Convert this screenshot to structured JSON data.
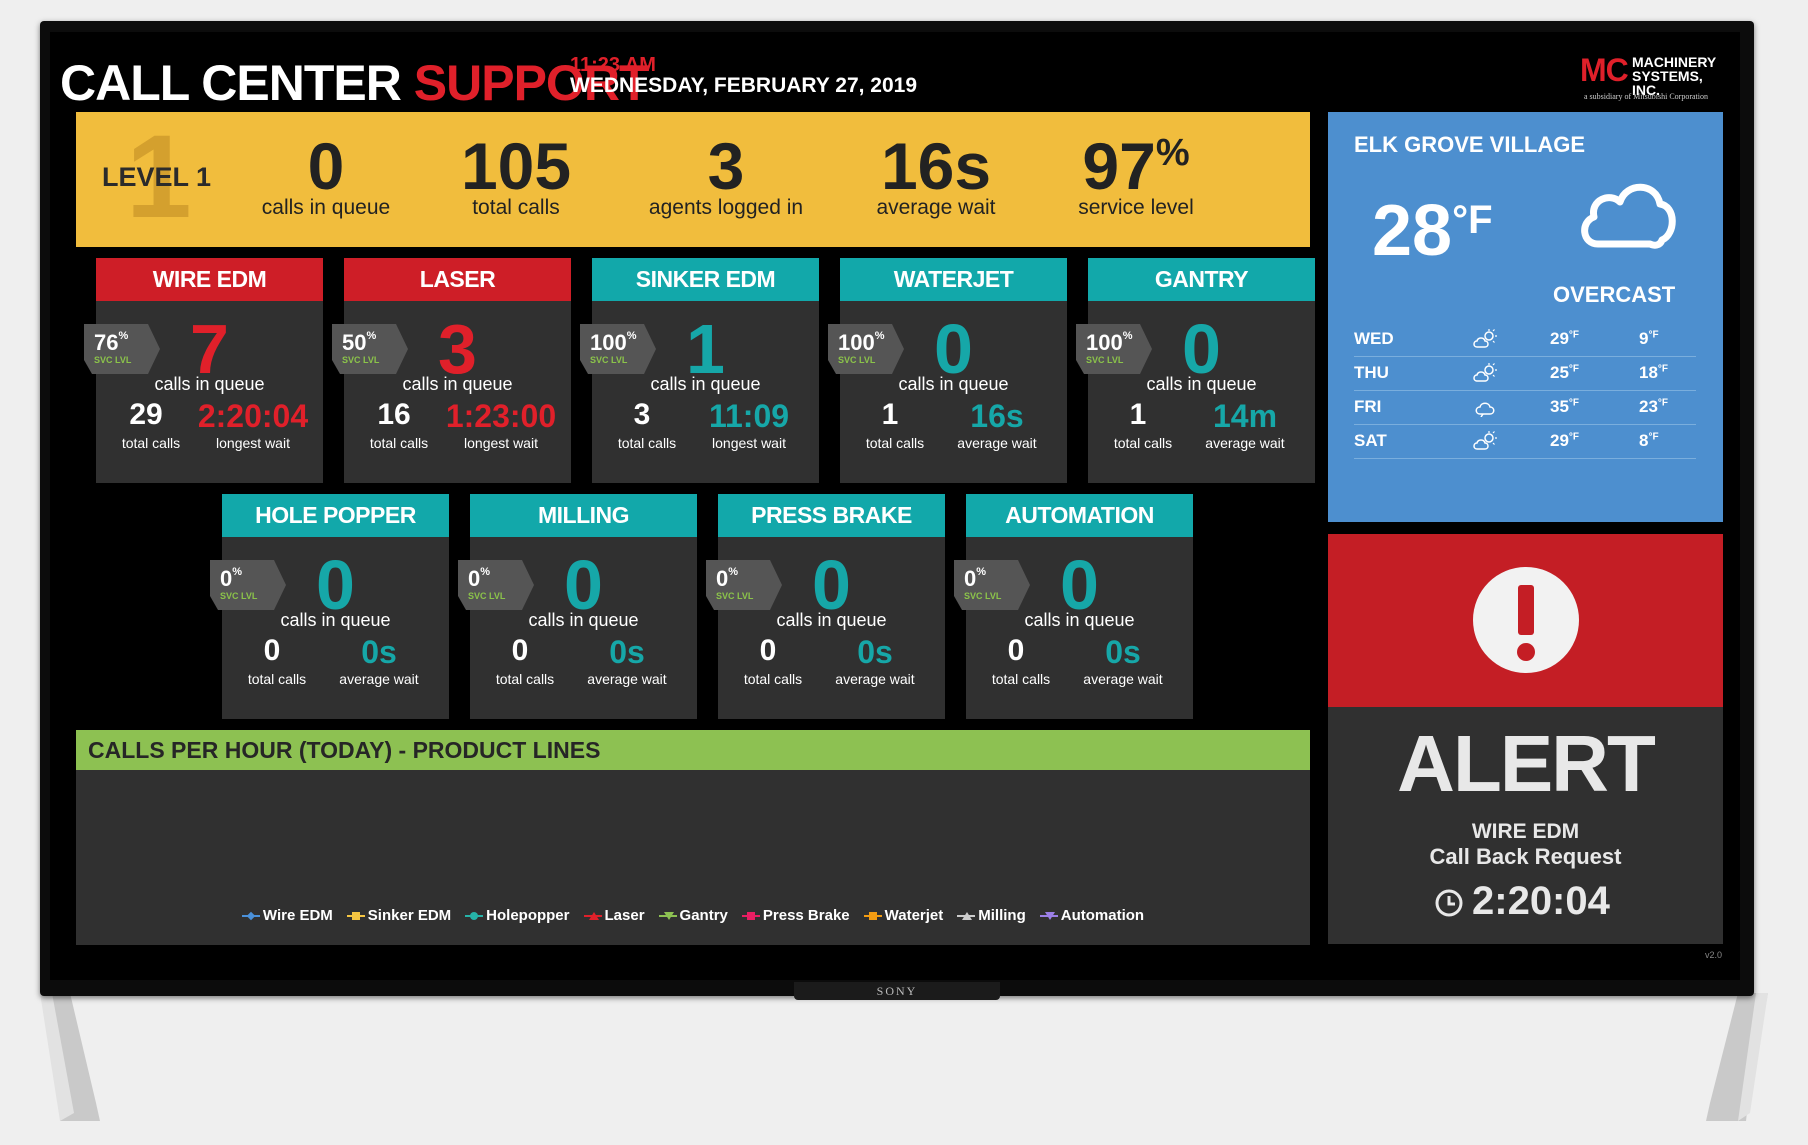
{
  "header": {
    "title_left": "CALL CENTER",
    "title_right": "SUPPORT",
    "time": "11:23 AM",
    "date": "WEDNESDAY, FEBRUARY 27, 2019",
    "logo": {
      "mc": "MC",
      "line1": "MACHINERY",
      "line2": "SYSTEMS, INC.",
      "subsidiary": "a subsidiary of Mitsubishi Corporation"
    }
  },
  "level": {
    "big_digit": "1",
    "label": "LEVEL 1",
    "stats": [
      {
        "value": "0",
        "label": "calls in queue"
      },
      {
        "value": "105",
        "label": "total calls"
      },
      {
        "value": "3",
        "label": "agents logged in"
      },
      {
        "value": "16s",
        "label": "average wait"
      },
      {
        "value": "97",
        "suffix": "%",
        "label": "service level"
      }
    ]
  },
  "cards": [
    {
      "name": "WIRE EDM",
      "color": "red",
      "svc_pct": "76",
      "svc_label": "SVC LVL",
      "queue": "7",
      "queue_label": "calls in queue",
      "total": "29",
      "total_label": "total calls",
      "wait": "2:20:04",
      "wait_label": "longest wait"
    },
    {
      "name": "LASER",
      "color": "red",
      "svc_pct": "50",
      "svc_label": "SVC LVL",
      "queue": "3",
      "queue_label": "calls in queue",
      "total": "16",
      "total_label": "total calls",
      "wait": "1:23:00",
      "wait_label": "longest wait"
    },
    {
      "name": "SINKER EDM",
      "color": "teal",
      "svc_pct": "100",
      "svc_label": "SVC LVL",
      "queue": "1",
      "queue_label": "calls in queue",
      "total": "3",
      "total_label": "total calls",
      "wait": "11:09",
      "wait_label": "longest wait"
    },
    {
      "name": "WATERJET",
      "color": "teal",
      "svc_pct": "100",
      "svc_label": "SVC LVL",
      "queue": "0",
      "queue_label": "calls in queue",
      "total": "1",
      "total_label": "total calls",
      "wait": "16s",
      "wait_label": "average wait"
    },
    {
      "name": "GANTRY",
      "color": "teal",
      "svc_pct": "100",
      "svc_label": "SVC LVL",
      "queue": "0",
      "queue_label": "calls in queue",
      "total": "1",
      "total_label": "total calls",
      "wait": "14m",
      "wait_label": "average wait"
    },
    {
      "name": "HOLE POPPER",
      "color": "teal",
      "svc_pct": "0",
      "svc_label": "SVC LVL",
      "queue": "0",
      "queue_label": "calls in queue",
      "total": "0",
      "total_label": "total calls",
      "wait": "0s",
      "wait_label": "average wait"
    },
    {
      "name": "MILLING",
      "color": "teal",
      "svc_pct": "0",
      "svc_label": "SVC LVL",
      "queue": "0",
      "queue_label": "calls in queue",
      "total": "0",
      "total_label": "total calls",
      "wait": "0s",
      "wait_label": "average wait"
    },
    {
      "name": "PRESS BRAKE",
      "color": "teal",
      "svc_pct": "0",
      "svc_label": "SVC LVL",
      "queue": "0",
      "queue_label": "calls in queue",
      "total": "0",
      "total_label": "total calls",
      "wait": "0s",
      "wait_label": "average wait"
    },
    {
      "name": "AUTOMATION",
      "color": "teal",
      "svc_pct": "0",
      "svc_label": "SVC LVL",
      "queue": "0",
      "queue_label": "calls in queue",
      "total": "0",
      "total_label": "total calls",
      "wait": "0s",
      "wait_label": "average wait"
    }
  ],
  "percent_symbol": "%",
  "colors": {
    "red": "#ce1e27",
    "teal": "#12a8aa",
    "yellow": "#f1bd3d",
    "green": "#8dc152",
    "weather_blue": "#4d8fcf"
  },
  "calls_per_hour": {
    "title": "CALLS PER HOUR (TODAY) - PRODUCT LINES",
    "legend": [
      {
        "label": "Wire EDM",
        "color": "#4a90d9",
        "marker": "diamond"
      },
      {
        "label": "Sinker EDM",
        "color": "#f5c542",
        "marker": "square"
      },
      {
        "label": "Holepopper",
        "color": "#26b3a8",
        "marker": "circle"
      },
      {
        "label": "Laser",
        "color": "#e0202a",
        "marker": "triangle"
      },
      {
        "label": "Gantry",
        "color": "#8dc152",
        "marker": "triangle-down"
      },
      {
        "label": "Press Brake",
        "color": "#e91e63",
        "marker": "dots"
      },
      {
        "label": "Waterjet",
        "color": "#f39c12",
        "marker": "square"
      },
      {
        "label": "Milling",
        "color": "#cccccc",
        "marker": "triangle"
      },
      {
        "label": "Automation",
        "color": "#9b7fe6",
        "marker": "triangle-down"
      }
    ]
  },
  "weather": {
    "location": "ELK GROVE VILLAGE",
    "temp": "28",
    "unit": "°F",
    "condition": "OVERCAST",
    "icon": "cloud-icon",
    "forecast": [
      {
        "day": "WED",
        "icon": "partly-sunny-icon",
        "hi": "29",
        "lo": "9"
      },
      {
        "day": "THU",
        "icon": "partly-sunny-icon",
        "hi": "25",
        "lo": "18"
      },
      {
        "day": "FRI",
        "icon": "cloud-outline-icon",
        "hi": "35",
        "lo": "23"
      },
      {
        "day": "SAT",
        "icon": "partly-sunny-icon",
        "hi": "29",
        "lo": "8"
      }
    ]
  },
  "alert": {
    "title": "ALERT",
    "source": "WIRE EDM",
    "message": "Call Back Request",
    "time": "2:20:04"
  },
  "version": "v2.0",
  "tv_brand": "SONY"
}
